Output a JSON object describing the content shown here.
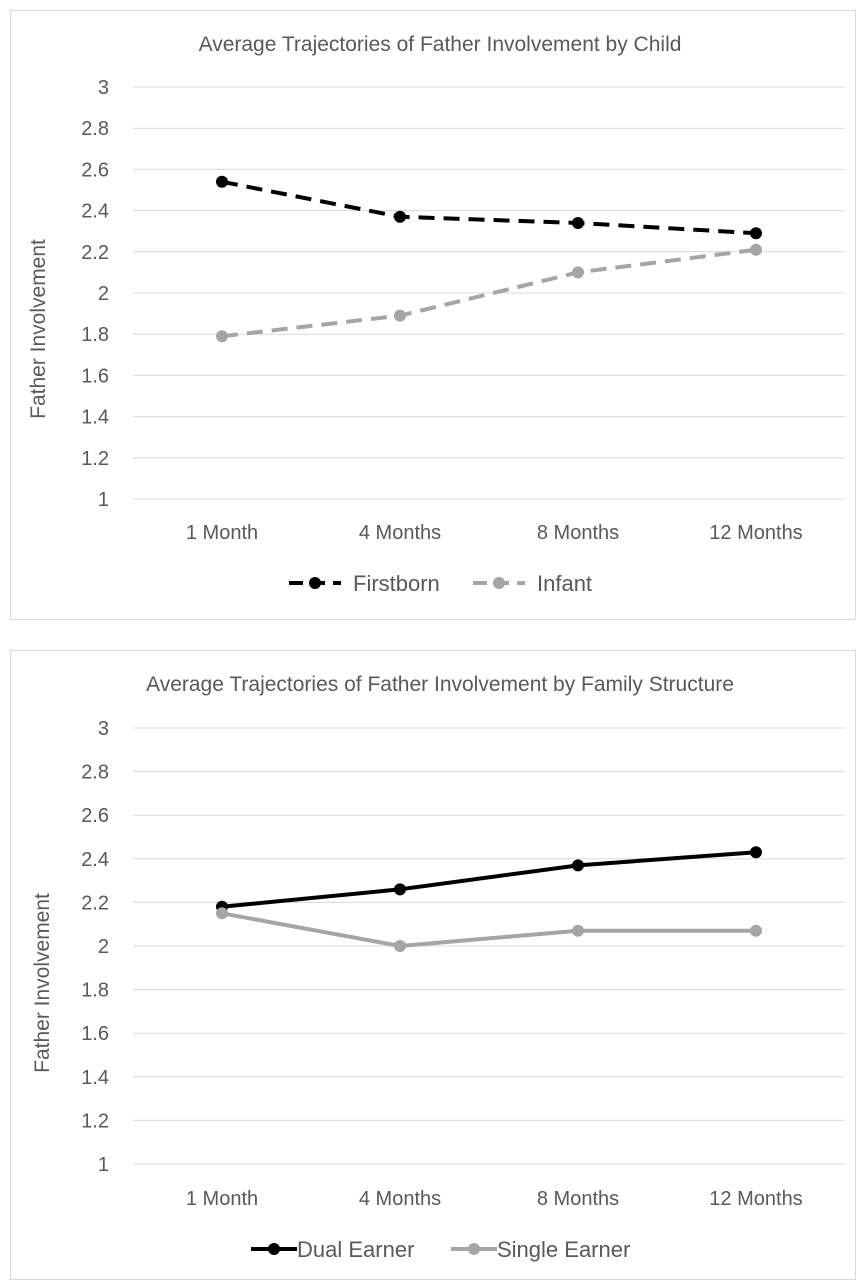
{
  "chart_data": [
    {
      "type": "line",
      "title": "Average Trajectories of Father Involvement by Child",
      "xlabel": "",
      "ylabel": "Father Involvement",
      "categories": [
        "1 Month",
        "4 Months",
        "8 Months",
        "12 Months"
      ],
      "ylim": [
        1,
        3
      ],
      "yticks": [
        "1",
        "1.2",
        "1.4",
        "1.6",
        "1.8",
        "2",
        "2.2",
        "2.4",
        "2.6",
        "2.8",
        "3"
      ],
      "grid": true,
      "legend_position": "bottom",
      "series": [
        {
          "name": "Firstborn",
          "values": [
            2.54,
            2.37,
            2.34,
            2.29
          ],
          "color": "#000000",
          "style": "dashed"
        },
        {
          "name": "Infant",
          "values": [
            1.79,
            1.89,
            2.1,
            2.21
          ],
          "color": "#a5a5a5",
          "style": "dashed"
        }
      ]
    },
    {
      "type": "line",
      "title": "Average Trajectories of Father Involvement by Family Structure",
      "xlabel": "",
      "ylabel": "Father Involvement",
      "categories": [
        "1 Month",
        "4 Months",
        "8 Months",
        "12 Months"
      ],
      "ylim": [
        1,
        3
      ],
      "yticks": [
        "1",
        "1.2",
        "1.4",
        "1.6",
        "1.8",
        "2",
        "2.2",
        "2.4",
        "2.6",
        "2.8",
        "3"
      ],
      "grid": true,
      "legend_position": "bottom",
      "series": [
        {
          "name": "Dual Earner",
          "values": [
            2.18,
            2.26,
            2.37,
            2.43
          ],
          "color": "#000000",
          "style": "solid"
        },
        {
          "name": "Single Earner",
          "values": [
            2.15,
            2.0,
            2.07,
            2.07
          ],
          "color": "#a5a5a5",
          "style": "solid"
        }
      ]
    }
  ]
}
